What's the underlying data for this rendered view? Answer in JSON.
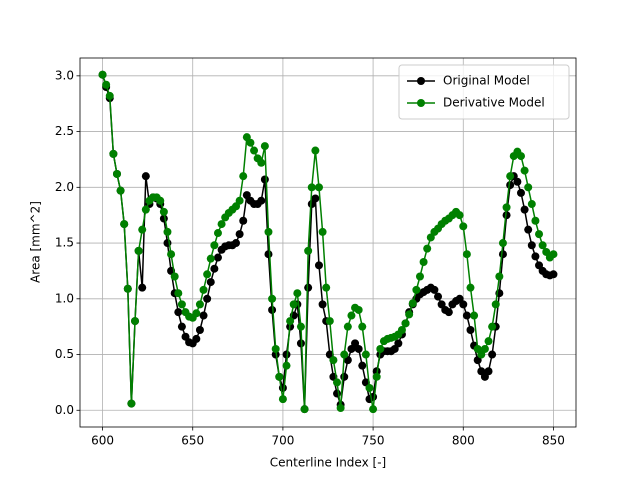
{
  "chart_data": {
    "type": "line",
    "xlabel": "Centerline Index [-]",
    "ylabel": "Area [mm^2]",
    "x": [
      600,
      602,
      604,
      606,
      608,
      610,
      612,
      614,
      616,
      618,
      620,
      622,
      624,
      626,
      628,
      630,
      632,
      634,
      636,
      638,
      640,
      642,
      644,
      646,
      648,
      650,
      652,
      654,
      656,
      658,
      660,
      662,
      664,
      666,
      668,
      670,
      672,
      674,
      676,
      678,
      680,
      682,
      684,
      686,
      688,
      690,
      692,
      694,
      696,
      698,
      700,
      702,
      704,
      706,
      708,
      710,
      712,
      714,
      716,
      718,
      720,
      722,
      724,
      726,
      728,
      730,
      732,
      734,
      736,
      738,
      740,
      742,
      744,
      746,
      748,
      750,
      752,
      754,
      756,
      758,
      760,
      762,
      764,
      766,
      768,
      770,
      772,
      774,
      776,
      778,
      780,
      782,
      784,
      786,
      788,
      790,
      792,
      794,
      796,
      798,
      800,
      802,
      804,
      806,
      808,
      810,
      812,
      814,
      816,
      818,
      820,
      822,
      824,
      826,
      828,
      830,
      832,
      834,
      836,
      838,
      840,
      842,
      844,
      846,
      848,
      850
    ],
    "series": [
      {
        "name": "Original Model",
        "color": "#000000",
        "values": [
          3.01,
          2.9,
          2.8,
          2.3,
          2.12,
          1.97,
          1.67,
          1.09,
          0.06,
          0.8,
          1.43,
          1.1,
          2.1,
          1.85,
          1.91,
          1.9,
          1.85,
          1.72,
          1.5,
          1.25,
          1.05,
          0.88,
          0.75,
          0.66,
          0.61,
          0.6,
          0.64,
          0.72,
          0.85,
          1.0,
          1.15,
          1.27,
          1.37,
          1.44,
          1.47,
          1.48,
          1.48,
          1.5,
          1.58,
          1.7,
          1.93,
          1.88,
          1.85,
          1.85,
          1.88,
          2.07,
          1.4,
          0.9,
          0.5,
          0.3,
          0.2,
          0.5,
          0.75,
          0.85,
          0.95,
          0.6,
          0.01,
          1.1,
          1.85,
          1.9,
          1.3,
          0.95,
          0.8,
          0.5,
          0.3,
          0.15,
          0.05,
          0.3,
          0.45,
          0.55,
          0.6,
          0.55,
          0.4,
          0.25,
          0.1,
          0.12,
          0.35,
          0.5,
          0.53,
          0.53,
          0.53,
          0.55,
          0.6,
          0.68,
          0.78,
          0.88,
          0.95,
          1.0,
          1.04,
          1.06,
          1.08,
          1.1,
          1.08,
          1.02,
          0.95,
          0.9,
          0.88,
          0.95,
          0.98,
          1.0,
          0.95,
          0.85,
          0.72,
          0.58,
          0.45,
          0.35,
          0.3,
          0.35,
          0.5,
          0.75,
          1.05,
          1.4,
          1.75,
          2.02,
          2.1,
          2.05,
          1.95,
          1.8,
          1.62,
          1.48,
          1.38,
          1.3,
          1.25,
          1.22,
          1.21,
          1.22
        ]
      },
      {
        "name": "Derivative Model",
        "color": "#008000",
        "values": [
          3.01,
          2.92,
          2.82,
          2.3,
          2.12,
          1.97,
          1.67,
          1.09,
          0.06,
          0.8,
          1.43,
          1.62,
          1.8,
          1.88,
          1.91,
          1.91,
          1.88,
          1.78,
          1.6,
          1.4,
          1.2,
          1.05,
          0.95,
          0.88,
          0.84,
          0.83,
          0.87,
          0.95,
          1.08,
          1.22,
          1.36,
          1.48,
          1.59,
          1.67,
          1.73,
          1.77,
          1.8,
          1.83,
          1.88,
          2.1,
          2.45,
          2.4,
          2.33,
          2.26,
          2.22,
          2.37,
          1.6,
          1.0,
          0.55,
          0.3,
          0.1,
          0.4,
          0.8,
          0.95,
          1.05,
          0.75,
          0.01,
          1.43,
          2.0,
          2.33,
          2.0,
          1.6,
          1.1,
          0.8,
          0.45,
          0.25,
          0.02,
          0.5,
          0.75,
          0.85,
          0.92,
          0.9,
          0.75,
          0.5,
          0.2,
          0.01,
          0.3,
          0.55,
          0.62,
          0.64,
          0.65,
          0.66,
          0.68,
          0.72,
          0.78,
          0.86,
          0.96,
          1.08,
          1.2,
          1.33,
          1.45,
          1.55,
          1.6,
          1.63,
          1.67,
          1.7,
          1.72,
          1.75,
          1.78,
          1.75,
          1.65,
          1.4,
          1.1,
          0.85,
          0.55,
          0.5,
          0.55,
          0.62,
          0.75,
          0.95,
          1.2,
          1.5,
          1.82,
          2.1,
          2.28,
          2.32,
          2.28,
          2.15,
          2.0,
          1.85,
          1.7,
          1.58,
          1.48,
          1.42,
          1.37,
          1.4
        ]
      }
    ],
    "xlim": [
      587.5,
      862.5
    ],
    "ylim": [
      -0.15,
      3.16
    ],
    "xticks": [
      600,
      650,
      700,
      750,
      800,
      850
    ],
    "yticks": [
      {
        "value": 0,
        "label": "0.0"
      },
      {
        "value": 0.5,
        "label": "0.5"
      },
      {
        "value": 1,
        "label": "1.0"
      },
      {
        "value": 1.5,
        "label": "1.5"
      },
      {
        "value": 2,
        "label": "2.0"
      },
      {
        "value": 2.5,
        "label": "2.5"
      },
      {
        "value": 3,
        "label": "3.0"
      }
    ],
    "grid": true,
    "legend": "upper right"
  }
}
